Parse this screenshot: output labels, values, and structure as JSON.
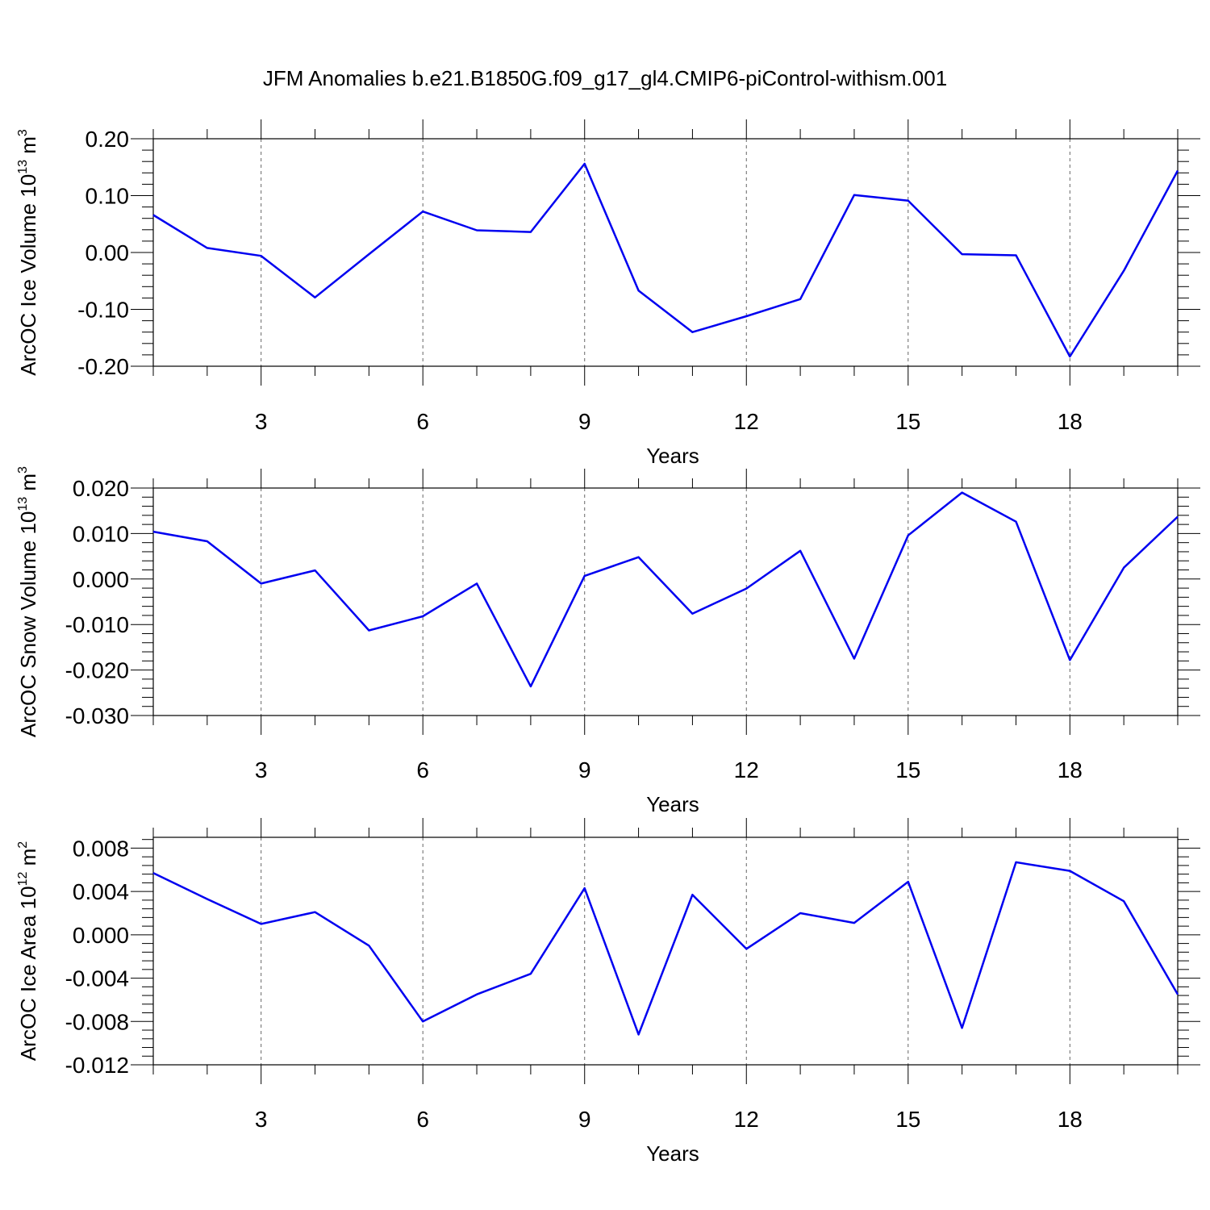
{
  "title": "JFM Anomalies b.e21.B1850G.f09_g17_gl4.CMIP6-piControl-withism.001",
  "chart_data": [
    {
      "type": "line",
      "ylabel": "ArcOC Ice Volume 10",
      "ylabel_exp": "13",
      "ylabel_unit": " m",
      "ylabel_unit_exp": "3",
      "xlabel": "Years",
      "xlim": [
        1,
        20
      ],
      "ylim": [
        -0.2,
        0.2
      ],
      "xticks": [
        3,
        6,
        9,
        12,
        15,
        18
      ],
      "yticks": [
        "0.20",
        "0.10",
        "0.00",
        "-0.10",
        "-0.20"
      ],
      "ytick_values": [
        0.2,
        0.1,
        0.0,
        -0.1,
        -0.2
      ],
      "grid": "x-dashed",
      "series": [
        {
          "color": "#0000f0",
          "x": [
            1,
            2,
            3,
            4,
            5,
            6,
            7,
            8,
            9,
            10,
            11,
            12,
            13,
            14,
            15,
            16,
            17,
            18,
            19,
            20
          ],
          "values": [
            0.066,
            0.008,
            -0.006,
            -0.079,
            -0.003,
            0.072,
            0.039,
            0.036,
            0.156,
            -0.067,
            -0.14,
            -0.112,
            -0.082,
            0.101,
            0.091,
            -0.003,
            -0.005,
            -0.183,
            -0.032,
            0.144
          ]
        }
      ]
    },
    {
      "type": "line",
      "ylabel": "ArcOC Snow Volume 10",
      "ylabel_exp": "13",
      "ylabel_unit": " m",
      "ylabel_unit_exp": "3",
      "xlabel": "Years",
      "xlim": [
        1,
        20
      ],
      "ylim": [
        -0.03,
        0.02
      ],
      "xticks": [
        3,
        6,
        9,
        12,
        15,
        18
      ],
      "yticks": [
        "0.020",
        "0.010",
        "0.000",
        "-0.010",
        "-0.020",
        "-0.030"
      ],
      "ytick_values": [
        0.02,
        0.01,
        0.0,
        -0.01,
        -0.02,
        -0.03
      ],
      "grid": "x-dashed",
      "series": [
        {
          "color": "#0000f0",
          "x": [
            1,
            2,
            3,
            4,
            5,
            6,
            7,
            8,
            9,
            10,
            11,
            12,
            13,
            14,
            15,
            16,
            17,
            18,
            19,
            20
          ],
          "values": [
            0.0104,
            0.0083,
            -0.001,
            0.0019,
            -0.0113,
            -0.0082,
            -0.001,
            -0.0236,
            0.0007,
            0.0048,
            -0.0076,
            -0.0021,
            0.0062,
            -0.0175,
            0.0096,
            0.019,
            0.0126,
            -0.0178,
            0.0025,
            0.0137
          ]
        }
      ]
    },
    {
      "type": "line",
      "ylabel": "ArcOC Ice Area 10",
      "ylabel_exp": "12",
      "ylabel_unit": " m",
      "ylabel_unit_exp": "2",
      "xlabel": "Years",
      "xlim": [
        1,
        20
      ],
      "ylim": [
        -0.012,
        0.009
      ],
      "xticks": [
        3,
        6,
        9,
        12,
        15,
        18
      ],
      "yticks": [
        "0.008",
        "0.004",
        "0.000",
        "-0.004",
        "-0.008",
        "-0.012"
      ],
      "ytick_values": [
        0.008,
        0.004,
        0.0,
        -0.004,
        -0.008,
        -0.012
      ],
      "grid": "x-dashed",
      "series": [
        {
          "color": "#0000f0",
          "x": [
            1,
            2,
            3,
            4,
            5,
            6,
            7,
            8,
            9,
            10,
            11,
            12,
            13,
            14,
            15,
            16,
            17,
            18,
            19,
            20
          ],
          "values": [
            0.0057,
            0.0033,
            0.001,
            0.0021,
            -0.001,
            -0.008,
            -0.0055,
            -0.0036,
            0.0043,
            -0.0092,
            0.0037,
            -0.0013,
            0.002,
            0.0011,
            0.0049,
            -0.0086,
            0.0067,
            0.0059,
            0.0031,
            -0.0055
          ]
        }
      ]
    }
  ]
}
